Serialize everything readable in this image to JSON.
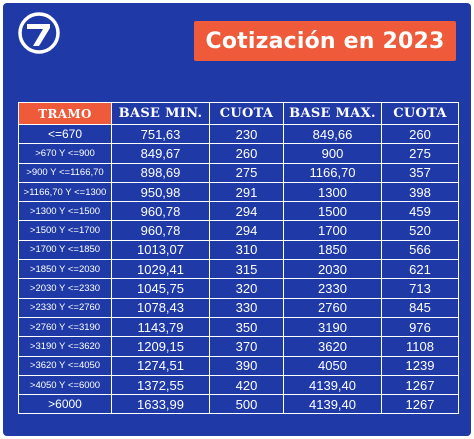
{
  "header": {
    "logo_icon": "seven-circle-logo-icon",
    "title": "Cotización en 2023",
    "title_bg": "#ee5a3a",
    "background": "#1f3aa7"
  },
  "table": {
    "columns": [
      "TRAMO",
      "BASE MIN.",
      "CUOTA",
      "BASE MAX.",
      "CUOTA"
    ],
    "rows": [
      {
        "tramo": "<=670",
        "base_min": "751,63",
        "cuota_min": "230",
        "base_max": "849,66",
        "cuota_max": "260"
      },
      {
        "tramo": ">670 Y <=900",
        "base_min": "849,67",
        "cuota_min": "260",
        "base_max": "900",
        "cuota_max": "275"
      },
      {
        "tramo": ">900 Y <=1166,70",
        "base_min": "898,69",
        "cuota_min": "275",
        "base_max": "1166,70",
        "cuota_max": "357"
      },
      {
        "tramo": ">1166,70 Y <=1300",
        "base_min": "950,98",
        "cuota_min": "291",
        "base_max": "1300",
        "cuota_max": "398"
      },
      {
        "tramo": ">1300 Y <=1500",
        "base_min": "960,78",
        "cuota_min": "294",
        "base_max": "1500",
        "cuota_max": "459"
      },
      {
        "tramo": ">1500 Y <=1700",
        "base_min": "960,78",
        "cuota_min": "294",
        "base_max": "1700",
        "cuota_max": "520"
      },
      {
        "tramo": ">1700 Y <=1850",
        "base_min": "1013,07",
        "cuota_min": "310",
        "base_max": "1850",
        "cuota_max": "566"
      },
      {
        "tramo": ">1850 Y <=2030",
        "base_min": "1029,41",
        "cuota_min": "315",
        "base_max": "2030",
        "cuota_max": "621"
      },
      {
        "tramo": ">2030 Y <=2330",
        "base_min": "1045,75",
        "cuota_min": "320",
        "base_max": "2330",
        "cuota_max": "713"
      },
      {
        "tramo": ">2330 Y <=2760",
        "base_min": "1078,43",
        "cuota_min": "330",
        "base_max": "2760",
        "cuota_max": "845"
      },
      {
        "tramo": ">2760 Y <=3190",
        "base_min": "1143,79",
        "cuota_min": "350",
        "base_max": "3190",
        "cuota_max": "976"
      },
      {
        "tramo": ">3190 Y <=3620",
        "base_min": "1209,15",
        "cuota_min": "370",
        "base_max": "3620",
        "cuota_max": "1108"
      },
      {
        "tramo": ">3620 Y <=4050",
        "base_min": "1274,51",
        "cuota_min": "390",
        "base_max": "4050",
        "cuota_max": "1239"
      },
      {
        "tramo": ">4050 Y <=6000",
        "base_min": "1372,55",
        "cuota_min": "420",
        "base_max": "4139,40",
        "cuota_max": "1267"
      },
      {
        "tramo": ">6000",
        "base_min": "1633,99",
        "cuota_min": "500",
        "base_max": "4139,40",
        "cuota_max": "1267"
      }
    ]
  }
}
